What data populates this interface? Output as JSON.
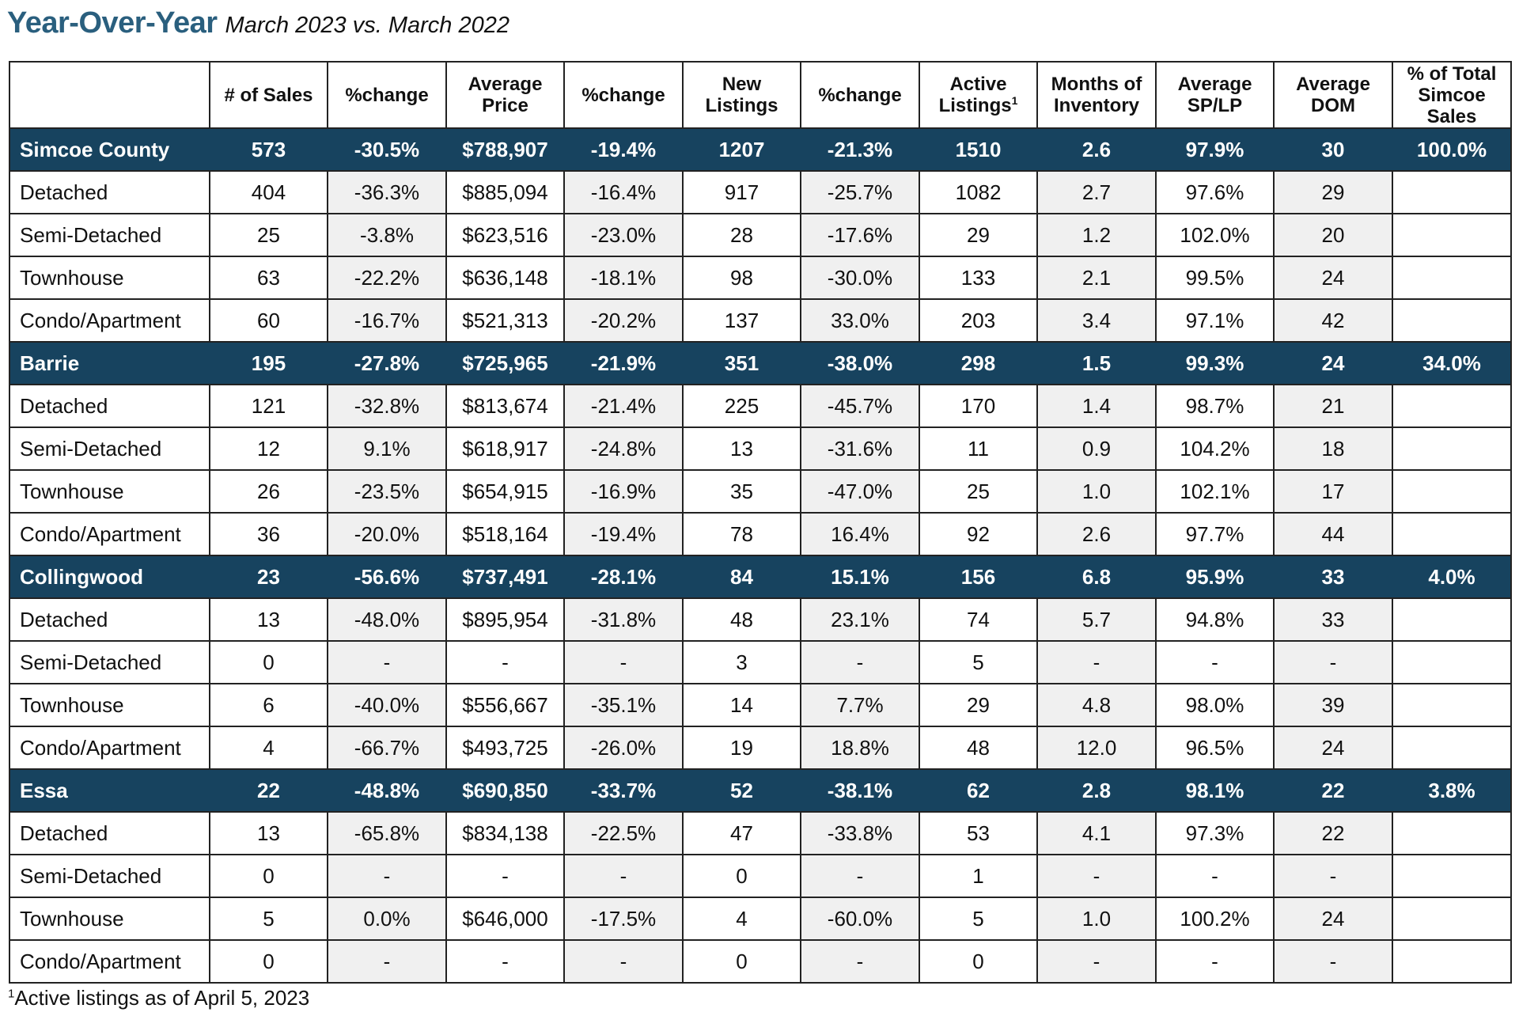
{
  "title": {
    "main": "Year-Over-Year",
    "sub": "March 2023 vs. March 2022"
  },
  "colors": {
    "title": "#2a5f7e",
    "group_row_bg": "#17435f",
    "group_row_text": "#ffffff",
    "shaded_cell_bg": "#f0f0f0"
  },
  "headers": [
    {
      "line1": "",
      "line2": "",
      "line3": "",
      "sup": ""
    },
    {
      "line1": "# of Sales",
      "line2": "",
      "line3": "",
      "sup": ""
    },
    {
      "line1": "%change",
      "line2": "",
      "line3": "",
      "sup": ""
    },
    {
      "line1": "Average",
      "line2": "Price",
      "line3": "",
      "sup": ""
    },
    {
      "line1": "%change",
      "line2": "",
      "line3": "",
      "sup": ""
    },
    {
      "line1": "New",
      "line2": "Listings",
      "line3": "",
      "sup": ""
    },
    {
      "line1": "%change",
      "line2": "",
      "line3": "",
      "sup": ""
    },
    {
      "line1": "Active",
      "line2": "Listings",
      "line3": "",
      "sup": "1"
    },
    {
      "line1": "Months of",
      "line2": "Inventory",
      "line3": "",
      "sup": ""
    },
    {
      "line1": "Average",
      "line2": "SP/LP",
      "line3": "",
      "sup": ""
    },
    {
      "line1": "Average",
      "line2": "DOM",
      "line3": "",
      "sup": ""
    },
    {
      "line1": "% of Total",
      "line2": "Simcoe",
      "line3": "Sales",
      "sup": ""
    }
  ],
  "rows": [
    {
      "type": "group",
      "cells": [
        "Simcoe County",
        "573",
        "-30.5%",
        "$788,907",
        "-19.4%",
        "1207",
        "-21.3%",
        "1510",
        "2.6",
        "97.9%",
        "30",
        "100.0%"
      ]
    },
    {
      "type": "sub",
      "cells": [
        "Detached",
        "404",
        "-36.3%",
        "$885,094",
        "-16.4%",
        "917",
        "-25.7%",
        "1082",
        "2.7",
        "97.6%",
        "29",
        ""
      ]
    },
    {
      "type": "sub",
      "cells": [
        "Semi-Detached",
        "25",
        "-3.8%",
        "$623,516",
        "-23.0%",
        "28",
        "-17.6%",
        "29",
        "1.2",
        "102.0%",
        "20",
        ""
      ]
    },
    {
      "type": "sub",
      "cells": [
        "Townhouse",
        "63",
        "-22.2%",
        "$636,148",
        "-18.1%",
        "98",
        "-30.0%",
        "133",
        "2.1",
        "99.5%",
        "24",
        ""
      ]
    },
    {
      "type": "sub",
      "cells": [
        "Condo/Apartment",
        "60",
        "-16.7%",
        "$521,313",
        "-20.2%",
        "137",
        "33.0%",
        "203",
        "3.4",
        "97.1%",
        "42",
        ""
      ]
    },
    {
      "type": "group",
      "cells": [
        "Barrie",
        "195",
        "-27.8%",
        "$725,965",
        "-21.9%",
        "351",
        "-38.0%",
        "298",
        "1.5",
        "99.3%",
        "24",
        "34.0%"
      ]
    },
    {
      "type": "sub",
      "cells": [
        "Detached",
        "121",
        "-32.8%",
        "$813,674",
        "-21.4%",
        "225",
        "-45.7%",
        "170",
        "1.4",
        "98.7%",
        "21",
        ""
      ]
    },
    {
      "type": "sub",
      "cells": [
        "Semi-Detached",
        "12",
        "9.1%",
        "$618,917",
        "-24.8%",
        "13",
        "-31.6%",
        "11",
        "0.9",
        "104.2%",
        "18",
        ""
      ]
    },
    {
      "type": "sub",
      "cells": [
        "Townhouse",
        "26",
        "-23.5%",
        "$654,915",
        "-16.9%",
        "35",
        "-47.0%",
        "25",
        "1.0",
        "102.1%",
        "17",
        ""
      ]
    },
    {
      "type": "sub",
      "cells": [
        "Condo/Apartment",
        "36",
        "-20.0%",
        "$518,164",
        "-19.4%",
        "78",
        "16.4%",
        "92",
        "2.6",
        "97.7%",
        "44",
        ""
      ]
    },
    {
      "type": "group",
      "cells": [
        "Collingwood",
        "23",
        "-56.6%",
        "$737,491",
        "-28.1%",
        "84",
        "15.1%",
        "156",
        "6.8",
        "95.9%",
        "33",
        "4.0%"
      ]
    },
    {
      "type": "sub",
      "cells": [
        "Detached",
        "13",
        "-48.0%",
        "$895,954",
        "-31.8%",
        "48",
        "23.1%",
        "74",
        "5.7",
        "94.8%",
        "33",
        ""
      ]
    },
    {
      "type": "sub",
      "cells": [
        "Semi-Detached",
        "0",
        "-",
        "-",
        "-",
        "3",
        "-",
        "5",
        "-",
        "-",
        "-",
        ""
      ]
    },
    {
      "type": "sub",
      "cells": [
        "Townhouse",
        "6",
        "-40.0%",
        "$556,667",
        "-35.1%",
        "14",
        "7.7%",
        "29",
        "4.8",
        "98.0%",
        "39",
        ""
      ]
    },
    {
      "type": "sub",
      "cells": [
        "Condo/Apartment",
        "4",
        "-66.7%",
        "$493,725",
        "-26.0%",
        "19",
        "18.8%",
        "48",
        "12.0",
        "96.5%",
        "24",
        ""
      ]
    },
    {
      "type": "group",
      "cells": [
        "Essa",
        "22",
        "-48.8%",
        "$690,850",
        "-33.7%",
        "52",
        "-38.1%",
        "62",
        "2.8",
        "98.1%",
        "22",
        "3.8%"
      ]
    },
    {
      "type": "sub",
      "cells": [
        "Detached",
        "13",
        "-65.8%",
        "$834,138",
        "-22.5%",
        "47",
        "-33.8%",
        "53",
        "4.1",
        "97.3%",
        "22",
        ""
      ]
    },
    {
      "type": "sub",
      "cells": [
        "Semi-Detached",
        "0",
        "-",
        "-",
        "-",
        "0",
        "-",
        "1",
        "-",
        "-",
        "-",
        ""
      ]
    },
    {
      "type": "sub",
      "cells": [
        "Townhouse",
        "5",
        "0.0%",
        "$646,000",
        "-17.5%",
        "4",
        "-60.0%",
        "5",
        "1.0",
        "100.2%",
        "24",
        ""
      ]
    },
    {
      "type": "sub",
      "cells": [
        "Condo/Apartment",
        "0",
        "-",
        "-",
        "-",
        "0",
        "-",
        "0",
        "-",
        "-",
        "-",
        ""
      ]
    }
  ],
  "footnote": {
    "sup": "1",
    "text": "Active listings as of April 5, 2023"
  }
}
